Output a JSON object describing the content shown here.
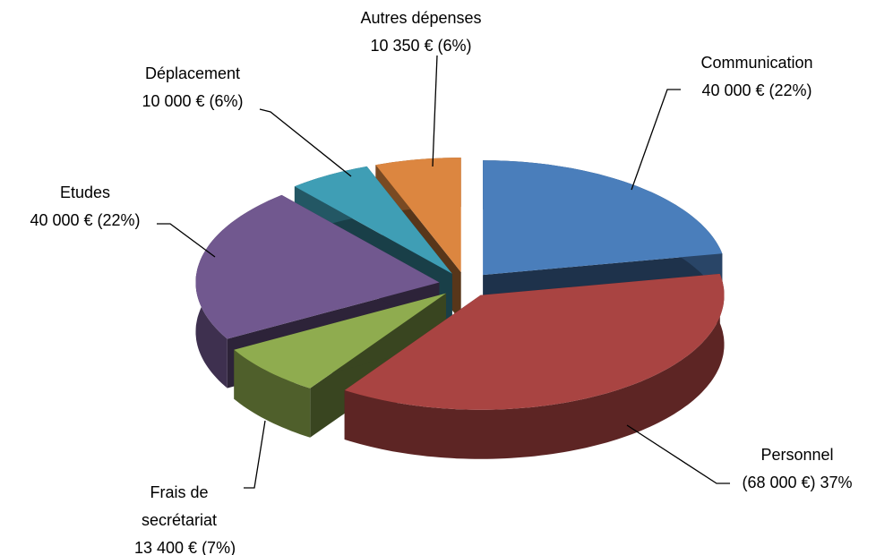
{
  "chart_data": {
    "type": "pie",
    "categories": [
      "Communication",
      "Personnel",
      "Frais de secrétariat",
      "Etudes",
      "Déplacement",
      "Autres dépenses"
    ],
    "values": [
      40000,
      68000,
      13400,
      40000,
      10000,
      10350
    ],
    "value_labels": [
      "40 000 € (22%)",
      "(68 000 €) 37%",
      "13 400 € (7%)",
      "40 000 € (22%)",
      "10 000 € (6%)",
      "10 350 € (6%)"
    ],
    "colors": [
      "#4a7ebb",
      "#a94442",
      "#8fac4f",
      "#71588f",
      "#3f9eb5",
      "#dc8640"
    ]
  }
}
